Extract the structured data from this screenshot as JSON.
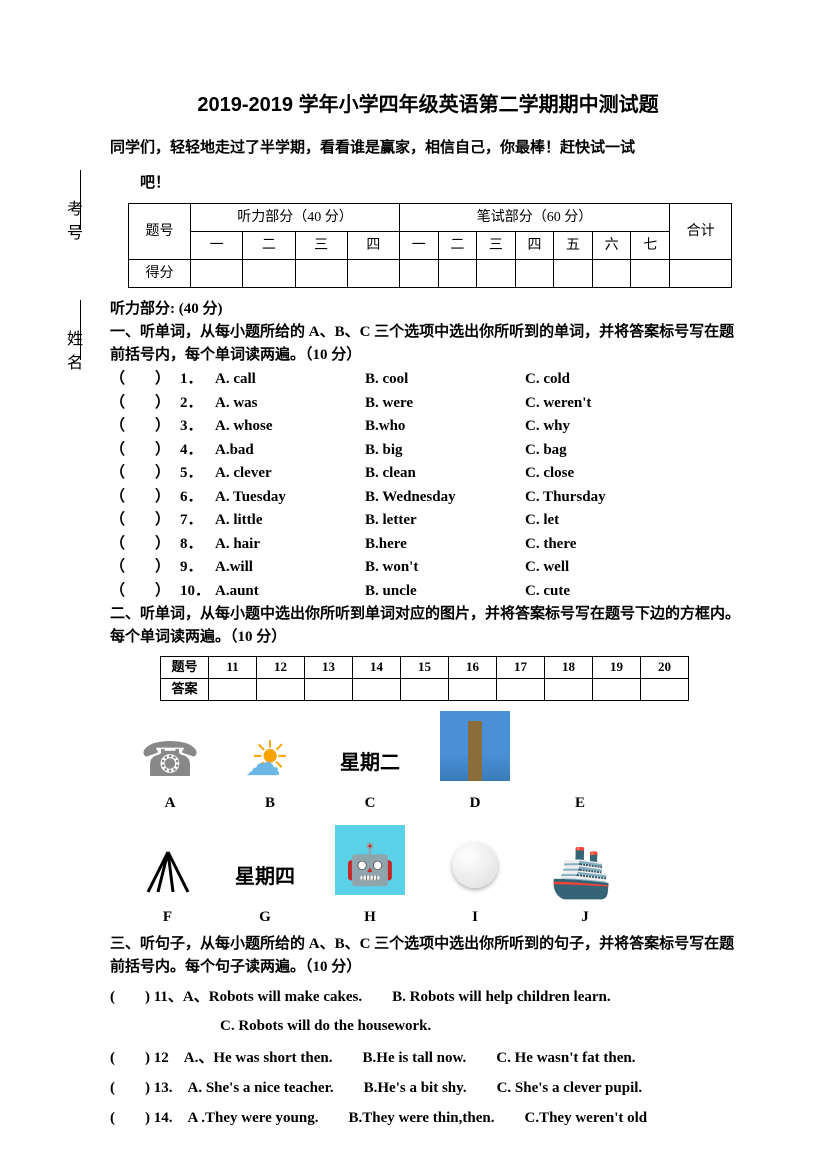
{
  "sidebar": {
    "label_exam_no": "考号",
    "label_name": "姓名"
  },
  "title": "2019-2019 学年小学四年级英语第二学期期中测试题",
  "intro_line1": "同学们，轻轻地走过了半学期，看看谁是赢家，相信自己，你最棒！赶快试一试",
  "intro_line2": "吧！",
  "score_table": {
    "row1": {
      "c1": "题号",
      "c2": "听力部分（40 分）",
      "c3": "笔试部分（60 分）",
      "c4": "合计"
    },
    "row2": {
      "l1": "一",
      "l2": "二",
      "l3": "三",
      "l4": "四",
      "w1": "一",
      "w2": "二",
      "w3": "三",
      "w4": "四",
      "w5": "五",
      "w6": "六",
      "w7": "七"
    },
    "row3_label": "得分"
  },
  "listening_header": "听力部分: (40 分)",
  "s1_instr": "一、听单词，从每小题所给的 A、B、C 三个选项中选出你所听到的单词，并将答案标号写在题前括号内，每个单词读两遍。（10 分）",
  "s1_items": [
    {
      "n": "1．",
      "a": "A. call",
      "b": "B. cool",
      "c": "C. cold"
    },
    {
      "n": "2．",
      "a": "A. was",
      "b": "B. were",
      "c": "C. weren't"
    },
    {
      "n": "3．",
      "a": "A. whose",
      "b": "B.who",
      "c": "C. why"
    },
    {
      "n": "4．",
      "a": "A.bad",
      "b": "B. big",
      "c": "C. bag"
    },
    {
      "n": "5．",
      "a": "A. clever",
      "b": "B. clean",
      "c": "C. close"
    },
    {
      "n": "6．",
      "a": "A. Tuesday",
      "b": "B. Wednesday",
      "c": "C. Thursday"
    },
    {
      "n": "7．",
      "a": "A. little",
      "b": "B. letter",
      "c": "C. let"
    },
    {
      "n": "8．",
      "a": "A. hair",
      "b": "B.here",
      "c": "C. there"
    },
    {
      "n": "9．",
      "a": "A.will",
      "b": "B. won't",
      "c": "C. well"
    },
    {
      "n": "10．",
      "a": "A.aunt",
      "b": "B. uncle",
      "c": "C. cute"
    }
  ],
  "s2_instr": "二、听单词，从每小题中选出你所听到单词对应的图片，并将答案标号写在题号下边的方框内。每个单词读两遍。（10 分）",
  "s2_table": {
    "label_q": "题号",
    "label_a": "答案",
    "nums": [
      "11",
      "12",
      "13",
      "14",
      "15",
      "16",
      "17",
      "18",
      "19",
      "20"
    ]
  },
  "s2_row1": {
    "a_label": "A",
    "b_label": "B",
    "c_label": "C",
    "d_label": "D",
    "e_label": "E",
    "c_text": "星期二"
  },
  "s2_row2": {
    "f_label": "F",
    "g_label": "G",
    "h_label": "H",
    "i_label": "I",
    "j_label": "J",
    "g_text": "星期四"
  },
  "s3_instr": "三、听句子，从每小题所给的 A、B、C 三个选项中选出你所听到的句子，并将答案标号写在题前括号内。每个句子读两遍。（10 分）",
  "s3_items": [
    {
      "pre": "(　　) 11、",
      "a": "A、Robots will make cakes.",
      "b": "B. Robots will help children learn."
    },
    {
      "sub": "C. Robots will do the housework."
    },
    {
      "pre": "(　　) 12　",
      "a": "A.、He was short then.",
      "b": "B.He is tall now.",
      "c": "C. He wasn't fat then."
    },
    {
      "pre": "(　　) 13.　",
      "a": "A. She's a nice teacher.",
      "b": "B.He's a bit shy.",
      "c": "C. She's a clever pupil."
    },
    {
      "pre": "(　　) 14.　",
      "a": "A .They were young.",
      "b": "B.They were thin,then.",
      "c": "C.They weren't old"
    }
  ],
  "colors": {
    "text": "#000000",
    "background": "#ffffff",
    "border": "#000000"
  }
}
